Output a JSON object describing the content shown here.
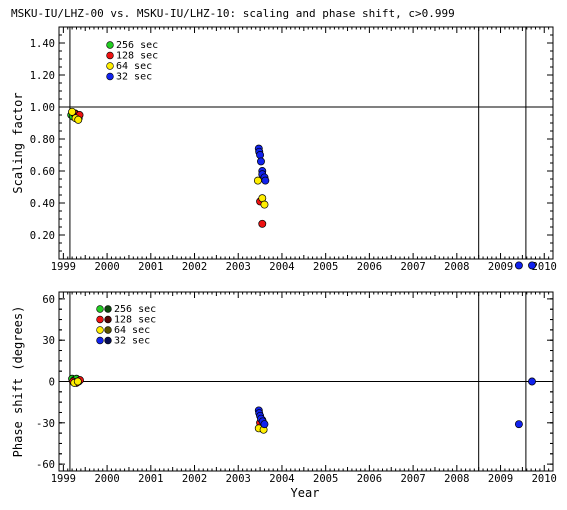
{
  "page_title": "MSKU-IU/LHZ-00 vs. MSKU-IU/LHZ-10: scaling and phase shift, c>0.999",
  "x_label": "Year",
  "chart_data": [
    {
      "type": "scatter",
      "ylabel": "Scaling factor",
      "xlim": [
        1998.9,
        2010.2
      ],
      "ylim": [
        0.05,
        1.5
      ],
      "xticks": [
        1999,
        2000,
        2001,
        2002,
        2003,
        2004,
        2005,
        2006,
        2007,
        2008,
        2009,
        2010
      ],
      "yticks": [
        0.2,
        0.4,
        0.6,
        0.8,
        1.0,
        1.2,
        1.4
      ],
      "ytick_labels": [
        "0.20",
        "0.40",
        "0.60",
        "0.80",
        "1.00",
        "1.20",
        "1.40"
      ],
      "reference_line": 1.0,
      "vertical_lines": [
        1999.15,
        2008.5,
        2009.58
      ],
      "legend_position": "top-left",
      "series": [
        {
          "name": "256 sec",
          "color": "#22cc22",
          "points": [
            [
              1999.18,
              0.95
            ],
            [
              1999.22,
              0.94
            ],
            [
              1999.27,
              0.96
            ],
            [
              1999.3,
              0.95
            ],
            [
              1999.35,
              0.93
            ]
          ]
        },
        {
          "name": "128 sec",
          "color": "#ee1111",
          "points": [
            [
              1999.25,
              0.96
            ],
            [
              1999.32,
              0.94
            ],
            [
              1999.37,
              0.95
            ],
            [
              2003.5,
              0.41
            ],
            [
              2003.55,
              0.27
            ]
          ]
        },
        {
          "name": "64 sec",
          "color": "#ffee00",
          "points": [
            [
              1999.2,
              0.97
            ],
            [
              1999.28,
              0.93
            ],
            [
              1999.34,
              0.92
            ],
            [
              2003.45,
              0.54
            ],
            [
              2003.55,
              0.43
            ],
            [
              2003.6,
              0.39
            ]
          ]
        },
        {
          "name": "32 sec",
          "color": "#1122ee",
          "points": [
            [
              2003.47,
              0.74
            ],
            [
              2003.48,
              0.72
            ],
            [
              2003.5,
              0.7
            ],
            [
              2003.52,
              0.66
            ],
            [
              2003.55,
              0.6
            ],
            [
              2003.55,
              0.58
            ],
            [
              2003.6,
              0.56
            ],
            [
              2003.62,
              0.54
            ],
            [
              2009.42,
              0.01
            ],
            [
              2009.72,
              0.01
            ]
          ]
        }
      ]
    },
    {
      "type": "scatter",
      "ylabel": "Phase shift (degrees)",
      "xlabel": "Year",
      "xlim": [
        1998.9,
        2010.2
      ],
      "ylim": [
        -65,
        65
      ],
      "xticks": [
        1999,
        2000,
        2001,
        2002,
        2003,
        2004,
        2005,
        2006,
        2007,
        2008,
        2009,
        2010
      ],
      "yticks": [
        -60,
        -30,
        0,
        30,
        60
      ],
      "ytick_labels": [
        "-60",
        "-30",
        "0",
        "30",
        "60"
      ],
      "reference_line": 0,
      "vertical_lines": [
        1999.15,
        2008.5,
        2009.58
      ],
      "legend_position": "top-left",
      "series": [
        {
          "name": "256 sec",
          "color": "#22cc22",
          "points": [
            [
              1999.2,
              2
            ],
            [
              1999.25,
              1
            ],
            [
              1999.3,
              2
            ],
            [
              1999.35,
              0
            ]
          ]
        },
        {
          "name": "128 sec",
          "color": "#ee1111",
          "points": [
            [
              1999.22,
              0
            ],
            [
              1999.3,
              -1
            ],
            [
              1999.38,
              1
            ],
            [
              2003.5,
              -30
            ],
            [
              2003.55,
              -28
            ]
          ]
        },
        {
          "name": "64 sec",
          "color": "#ffee00",
          "points": [
            [
              1999.25,
              -1
            ],
            [
              1999.33,
              0
            ],
            [
              2003.47,
              -34
            ],
            [
              2003.58,
              -35
            ]
          ]
        },
        {
          "name": "32 sec",
          "color": "#1122ee",
          "points": [
            [
              2003.47,
              -21
            ],
            [
              2003.48,
              -23
            ],
            [
              2003.5,
              -25
            ],
            [
              2003.52,
              -27
            ],
            [
              2003.56,
              -29
            ],
            [
              2003.6,
              -31
            ],
            [
              2009.42,
              -31
            ],
            [
              2009.72,
              0
            ]
          ]
        }
      ]
    }
  ]
}
